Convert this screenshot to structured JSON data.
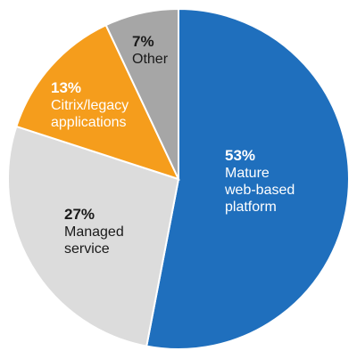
{
  "chart_data": {
    "type": "pie",
    "start_angle_deg": 0,
    "direction": "clockwise",
    "title": "",
    "slices": [
      {
        "percent_label": "53%",
        "value": 53,
        "label_lines": [
          "Mature",
          "web-based",
          "platform"
        ],
        "color": "#1f6fbd",
        "text_color": "#ffffff"
      },
      {
        "percent_label": "27%",
        "value": 27,
        "label_lines": [
          "Managed",
          "service"
        ],
        "color": "#dcdcdc",
        "text_color": "#1a1a1a"
      },
      {
        "percent_label": "13%",
        "value": 13,
        "label_lines": [
          "Citrix/legacy",
          "applications"
        ],
        "color": "#f59d1c",
        "text_color": "#ffffff"
      },
      {
        "percent_label": "7%",
        "value": 7,
        "label_lines": [
          "Other"
        ],
        "color": "#a6a6a6",
        "text_color": "#1a1a1a"
      }
    ]
  }
}
